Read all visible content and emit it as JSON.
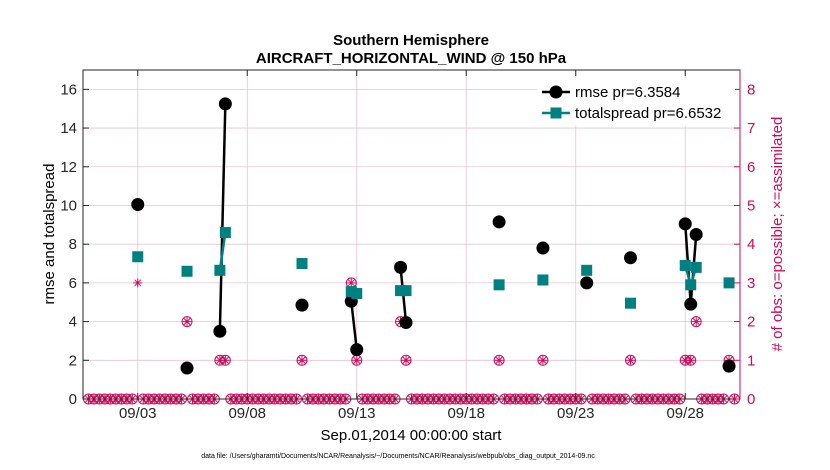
{
  "chart_data": {
    "type": "line",
    "title": "Southern Hemisphere",
    "subtitle": "AIRCRAFT_HORIZONTAL_WIND @ 150 hPa",
    "xlabel": "Sep.01,2014 00:00:00 start",
    "ylabel": "rmse and totalspread",
    "y2label": "# of obs: o=possible; ×=assimilated",
    "footnote": "data file: /Users/gharamti/Documents/NCAR/Reanalysis/~/Documents/NCAR/Reanalysis/webpub/obs_diag_output_2014-09.nc",
    "xlim": [
      0.5,
      30.5
    ],
    "ylim": [
      0,
      17
    ],
    "y2lim": [
      0,
      8.5
    ],
    "x_ticks": [
      {
        "x": 3,
        "label": "09/03"
      },
      {
        "x": 8,
        "label": "09/08"
      },
      {
        "x": 13,
        "label": "09/13"
      },
      {
        "x": 18,
        "label": "09/18"
      },
      {
        "x": 23,
        "label": "09/23"
      },
      {
        "x": 28,
        "label": "09/28"
      }
    ],
    "y_ticks": [
      {
        "v": 0,
        "label": "0"
      },
      {
        "v": 2,
        "label": "2"
      },
      {
        "v": 4,
        "label": "4"
      },
      {
        "v": 6,
        "label": "6"
      },
      {
        "v": 8,
        "label": "8"
      },
      {
        "v": 10,
        "label": "10"
      },
      {
        "v": 12,
        "label": "12"
      },
      {
        "v": 14,
        "label": "14"
      },
      {
        "v": 16,
        "label": "16"
      }
    ],
    "y2_ticks": [
      {
        "v": 0,
        "label": "0"
      },
      {
        "v": 1,
        "label": "1"
      },
      {
        "v": 2,
        "label": "2"
      },
      {
        "v": 3,
        "label": "3"
      },
      {
        "v": 4,
        "label": "4"
      },
      {
        "v": 5,
        "label": "5"
      },
      {
        "v": 6,
        "label": "6"
      },
      {
        "v": 7,
        "label": "7"
      },
      {
        "v": 8,
        "label": "8"
      }
    ],
    "grid": true,
    "legend_position": "top-right",
    "series": [
      {
        "name": "rmse pr=6.3584",
        "color": "#000000",
        "marker": "circle",
        "segments": [
          [
            [
              3.0,
              10.05
            ]
          ],
          [
            [
              5.25,
              1.6
            ]
          ],
          [
            [
              6.75,
              3.5
            ],
            [
              7.0,
              15.25
            ]
          ],
          [
            [
              10.5,
              4.85
            ]
          ],
          [
            [
              12.75,
              5.05
            ],
            [
              13.0,
              2.55
            ]
          ],
          [
            [
              15.0,
              6.8
            ],
            [
              15.25,
              3.95
            ]
          ],
          [
            [
              19.5,
              9.15
            ]
          ],
          [
            [
              21.5,
              7.8
            ]
          ],
          [
            [
              23.5,
              6.0
            ]
          ],
          [
            [
              25.5,
              7.3
            ]
          ],
          [
            [
              28.0,
              9.05
            ],
            [
              28.25,
              4.9
            ],
            [
              28.5,
              8.5
            ]
          ],
          [
            [
              30.0,
              1.7
            ]
          ]
        ]
      },
      {
        "name": "totalspread pr=6.6532",
        "color": "#008080",
        "marker": "square",
        "segments": [
          [
            [
              3.0,
              7.35
            ]
          ],
          [
            [
              5.25,
              6.6
            ]
          ],
          [
            [
              6.75,
              6.65
            ],
            [
              7.0,
              8.6
            ]
          ],
          [
            [
              10.5,
              7.0
            ]
          ],
          [
            [
              12.75,
              5.55
            ],
            [
              13.0,
              5.45
            ]
          ],
          [
            [
              15.0,
              5.6
            ],
            [
              15.25,
              5.6
            ]
          ],
          [
            [
              19.5,
              5.9
            ]
          ],
          [
            [
              21.5,
              6.15
            ]
          ],
          [
            [
              23.5,
              6.65
            ]
          ],
          [
            [
              25.5,
              4.95
            ]
          ],
          [
            [
              28.0,
              6.9
            ],
            [
              28.25,
              5.9
            ],
            [
              28.5,
              6.8
            ]
          ],
          [
            [
              30.0,
              6.0
            ]
          ]
        ]
      }
    ],
    "obs_possible": [
      [
        3.0,
        5
      ],
      [
        5.25,
        2
      ],
      [
        6.75,
        1
      ],
      [
        7.0,
        1
      ],
      [
        10.5,
        1
      ],
      [
        12.75,
        3
      ],
      [
        13.0,
        1
      ],
      [
        15.0,
        2
      ],
      [
        15.25,
        1
      ],
      [
        19.5,
        1
      ],
      [
        21.5,
        1
      ],
      [
        23.5,
        3
      ],
      [
        25.5,
        1
      ],
      [
        28.0,
        1
      ],
      [
        28.25,
        1
      ],
      [
        28.5,
        2
      ],
      [
        30.0,
        1
      ]
    ],
    "obs_assimilated": [
      [
        3.0,
        3
      ],
      [
        5.25,
        2
      ],
      [
        6.75,
        1
      ],
      [
        7.0,
        1
      ],
      [
        10.5,
        1
      ],
      [
        12.75,
        3
      ],
      [
        13.0,
        1
      ],
      [
        15.0,
        2
      ],
      [
        15.25,
        1
      ],
      [
        19.5,
        1
      ],
      [
        21.5,
        1
      ],
      [
        23.5,
        3
      ],
      [
        25.5,
        1
      ],
      [
        28.0,
        1
      ],
      [
        28.25,
        1
      ],
      [
        28.5,
        2
      ],
      [
        30.0,
        1
      ]
    ],
    "zero_obs_step": 0.25,
    "colors": {
      "obs": "#cc0a5a",
      "grid": "#e6c3d3",
      "axis": "#262626"
    }
  }
}
